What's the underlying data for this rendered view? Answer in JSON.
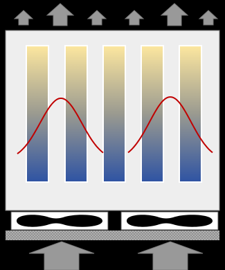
{
  "colors": {
    "background": "#000000",
    "enclosure_fill": "#eeeeee",
    "enclosure_stroke": "#7f7f7f",
    "bar_top": "#fde79f",
    "bar_mid": "#9a9a90",
    "bar_bottom": "#2e53a3",
    "bar_stroke": "#ffffff",
    "curve": "#c00000",
    "arrow_fill": "#999999",
    "arrow_stroke": "#7a7a7a",
    "fan_housing": "#ffffff",
    "fan_blade": "#000000",
    "base_plate": "#b8b8b8"
  },
  "diagram": {
    "outlet_arrow_count": 6,
    "bar_count": 5,
    "curve_count": 2,
    "fan_count": 2,
    "inlet_arrow_count": 2
  }
}
